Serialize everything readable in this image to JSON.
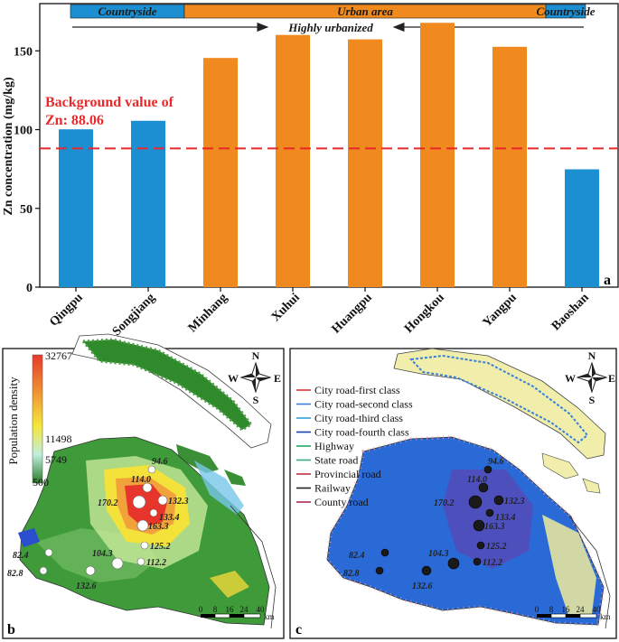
{
  "chart_data": {
    "type": "bar",
    "title": "",
    "ylabel": "Zn concentration (mg/kg)",
    "xlabel": "",
    "ylim": [
      0,
      180
    ],
    "yticks": [
      0,
      50,
      100,
      150
    ],
    "categories": [
      "Qingpu",
      "Songjiang",
      "Minhang",
      "Xuhui",
      "Huangpu",
      "Hongkou",
      "Yangpu",
      "Baoshan"
    ],
    "values": [
      100.2,
      105.6,
      145.5,
      160.1,
      157.3,
      167.8,
      152.6,
      74.8
    ],
    "bar_groups": [
      "countryside",
      "countryside",
      "urban",
      "urban",
      "urban",
      "urban",
      "urban",
      "countryside"
    ],
    "background_line": {
      "value": 88.06,
      "label_line1": "Background value of",
      "label_line2": "Zn: 88.06"
    },
    "bands": [
      {
        "label": "Countryside",
        "group": "countryside"
      },
      {
        "label": "Urban area",
        "group": "urban"
      },
      {
        "label": "Countryside",
        "group": "countryside"
      }
    ],
    "arrow_label": "Highly urbanized",
    "panel_label": "a"
  },
  "colors": {
    "countryside": "#1b8fd2",
    "urban": "#f08a1e",
    "background_line": "#e8282a"
  },
  "map_b": {
    "panel_label": "b",
    "legend_title": "Population density",
    "legend_values": [
      "32767",
      "11498",
      "5749",
      "500"
    ],
    "north_labels": {
      "n": "N",
      "s": "S",
      "e": "E",
      "w": "W"
    },
    "scale_ticks": [
      "0",
      "8",
      "16",
      "24",
      "40"
    ],
    "scale_unit": "km",
    "site_labels": [
      "94.6",
      "114.0",
      "170.2",
      "132.3",
      "133.4",
      "163.3",
      "125.2",
      "104.3",
      "112.2",
      "82.4",
      "82.8",
      "132.6"
    ]
  },
  "map_c": {
    "panel_label": "c",
    "legend_items": [
      {
        "label": "City road-first class",
        "color": "#e0303a"
      },
      {
        "label": "City road-second class",
        "color": "#3a7fd8"
      },
      {
        "label": "City road-third class",
        "color": "#2fa0e0"
      },
      {
        "label": "City road-fourth class",
        "color": "#1a3fb0"
      },
      {
        "label": "Highway",
        "color": "#1ea868"
      },
      {
        "label": "State road",
        "color": "#3aa890"
      },
      {
        "label": "Provincial road",
        "color": "#c03040"
      },
      {
        "label": "Railway",
        "color": "#222222"
      },
      {
        "label": "County road",
        "color": "#b02848"
      }
    ],
    "north_labels": {
      "n": "N",
      "s": "S",
      "e": "E",
      "w": "W"
    },
    "scale_ticks": [
      "0",
      "8",
      "16",
      "24",
      "40"
    ],
    "scale_unit": "km",
    "site_labels": [
      "94.6",
      "114.0",
      "170.2",
      "132.3",
      "133.4",
      "163.3",
      "125.2",
      "104.3",
      "112.2",
      "82.4",
      "82.8",
      "132.6"
    ]
  }
}
